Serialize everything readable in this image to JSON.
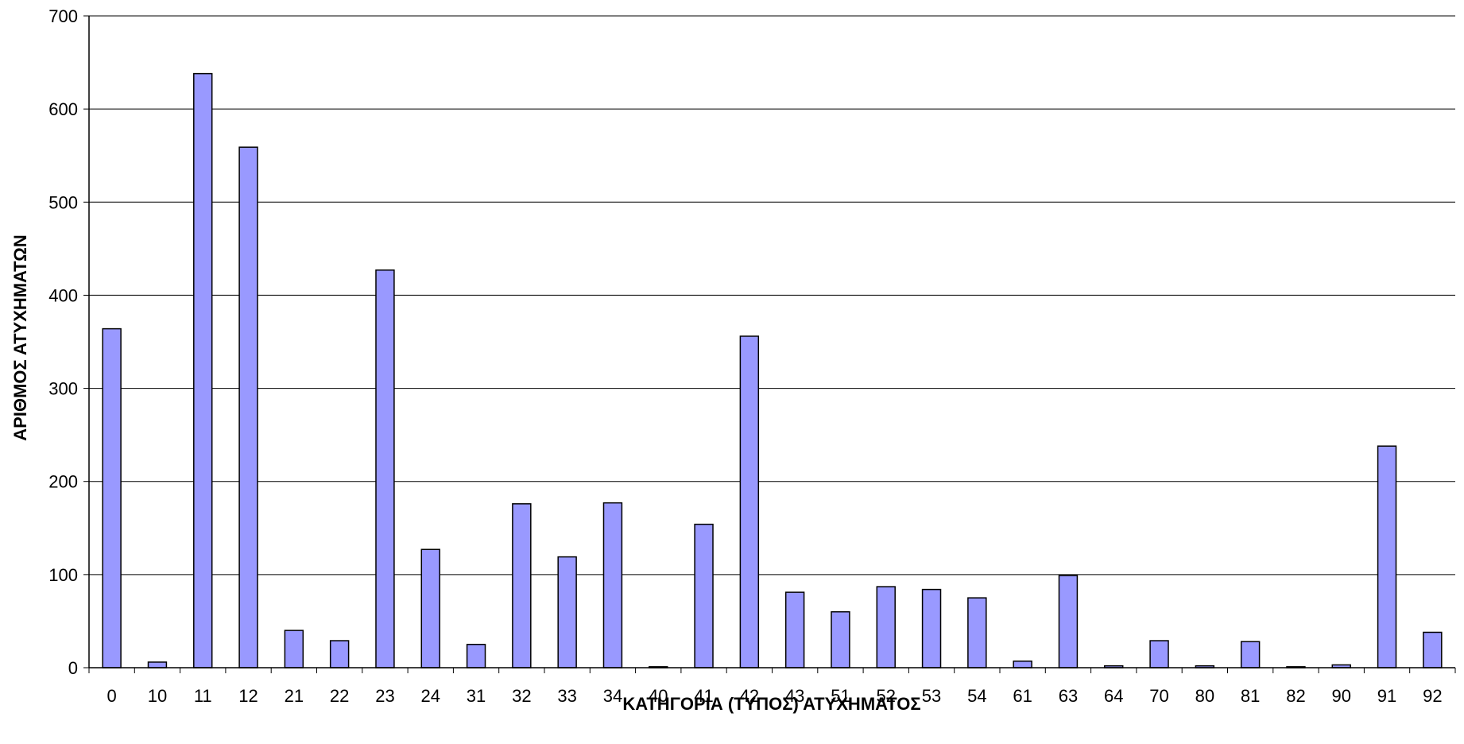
{
  "chart_data": {
    "type": "bar",
    "title": "",
    "xlabel": "ΚΑΤΗΓΟΡΙΑ (ΤΥΠΟΣ) ΑΤΥΧΗΜΑΤΟΣ",
    "ylabel": "ΑΡΙΘΜΟΣ ΑΤΥΧΗΜΑΤΩΝ",
    "categories": [
      "0",
      "10",
      "11",
      "12",
      "21",
      "22",
      "23",
      "24",
      "31",
      "32",
      "33",
      "34",
      "40",
      "41",
      "42",
      "43",
      "51",
      "52",
      "53",
      "54",
      "61",
      "63",
      "64",
      "70",
      "80",
      "81",
      "82",
      "90",
      "91",
      "92"
    ],
    "values": [
      364,
      6,
      638,
      559,
      40,
      29,
      427,
      127,
      25,
      176,
      119,
      177,
      1,
      154,
      356,
      81,
      60,
      87,
      84,
      75,
      7,
      99,
      2,
      29,
      2,
      28,
      1,
      3,
      238,
      38
    ],
    "ylim": [
      0,
      700
    ],
    "yticks": [
      0,
      100,
      200,
      300,
      400,
      500,
      600,
      700
    ],
    "grid": true,
    "legend": "none",
    "colors": {
      "bar_fill": "#9999FF",
      "bar_stroke": "#000000",
      "grid": "#000000"
    }
  }
}
